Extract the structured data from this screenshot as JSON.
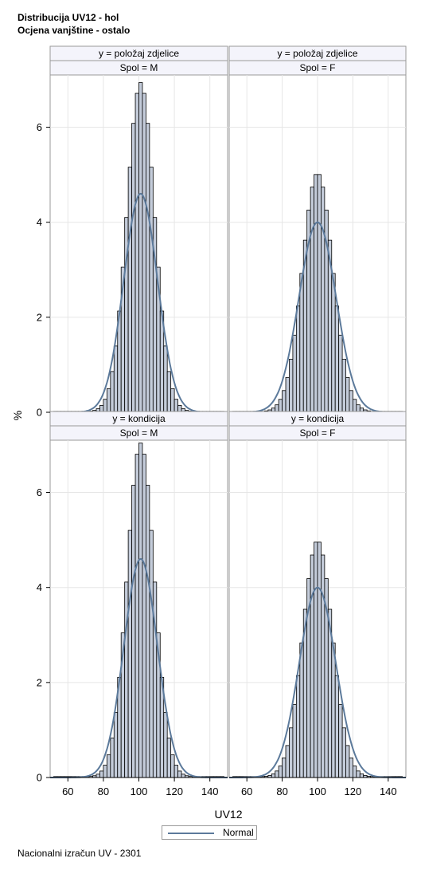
{
  "titles": {
    "line1": "Distribucija UV12 - hol",
    "line2": "Ocjena vanjštine - ostalo"
  },
  "footer": "Nacionalni izračun UV - 2301",
  "legend": {
    "label": "Normal"
  },
  "colors": {
    "bar_fill": "#c4ccda",
    "bar_stroke": "#000000",
    "curve": "#5c7a9b",
    "header_bg": "#f4f4fb",
    "grid": "#e6e6e6"
  },
  "chart_data": {
    "type": "histogram-panel",
    "xlabel": "UV12",
    "ylabel": "%",
    "xlim": [
      50,
      150
    ],
    "ylim": [
      0,
      7.1
    ],
    "x_ticks": [
      60,
      80,
      100,
      120,
      140
    ],
    "y_ticks": [
      0,
      2,
      4,
      6
    ],
    "grid": true,
    "bin_width": 2,
    "legend_position": "bottom",
    "panels": [
      {
        "row_label": "y = položaj zdjelice",
        "col_label": "Spol = M",
        "peak": 6.9,
        "mean": 101,
        "sd": 9.5,
        "normal_peak": 4.6
      },
      {
        "row_label": "y = položaj zdjelice",
        "col_label": "Spol = F",
        "peak": 5.0,
        "mean": 100,
        "sd": 10.5,
        "normal_peak": 4.0
      },
      {
        "row_label": "y = kondicija",
        "col_label": "Spol = M",
        "peak": 7.0,
        "mean": 101,
        "sd": 9.4,
        "normal_peak": 4.6
      },
      {
        "row_label": "y = kondicija",
        "col_label": "Spol = F",
        "peak": 4.95,
        "mean": 100,
        "sd": 10.3,
        "normal_peak": 4.0
      }
    ]
  }
}
